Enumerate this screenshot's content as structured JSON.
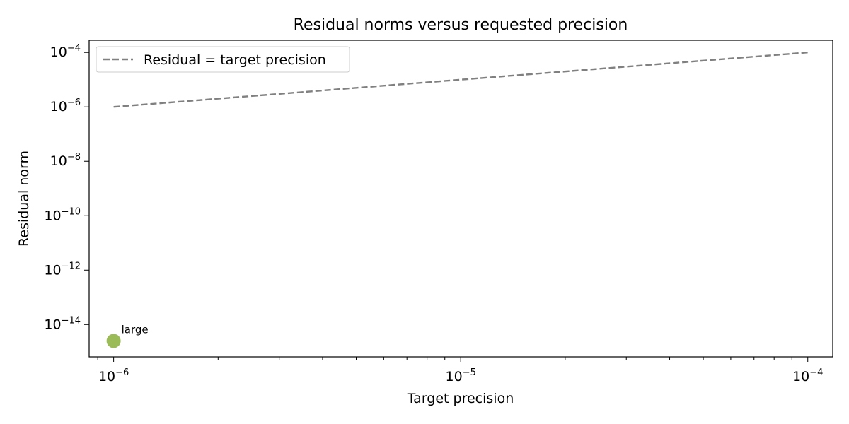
{
  "chart_data": {
    "type": "scatter",
    "title": "Residual norms versus requested precision",
    "xlabel": "Target precision",
    "ylabel": "Residual norm",
    "x_scale": "log",
    "y_scale": "log",
    "xlim": [
      8.5e-07,
      0.000118
    ],
    "ylim": [
      6.5e-16,
      0.00028
    ],
    "x_ticks": [
      {
        "value": 1e-06,
        "base": "10",
        "exp": "−6"
      },
      {
        "value": 1e-05,
        "base": "10",
        "exp": "−5"
      },
      {
        "value": 0.0001,
        "base": "10",
        "exp": "−4"
      }
    ],
    "y_ticks": [
      {
        "value": 0.0001,
        "base": "10",
        "exp": "−4"
      },
      {
        "value": 1e-06,
        "base": "10",
        "exp": "−6"
      },
      {
        "value": 1e-08,
        "base": "10",
        "exp": "−8"
      },
      {
        "value": 1e-10,
        "base": "10",
        "exp": "−10"
      },
      {
        "value": 1e-12,
        "base": "10",
        "exp": "−12"
      },
      {
        "value": 1e-14,
        "base": "10",
        "exp": "−14"
      }
    ],
    "reference_line": {
      "name": "Residual = target precision",
      "x": [
        1e-06,
        0.0001
      ],
      "y": [
        1e-06,
        0.0001
      ],
      "color": "#808080",
      "style": "dashed"
    },
    "points": [
      {
        "x": 1e-06,
        "y": 2.5e-15,
        "label": "large",
        "color": "#9bbb59"
      }
    ],
    "legend_position": "upper-left",
    "grid": false
  }
}
